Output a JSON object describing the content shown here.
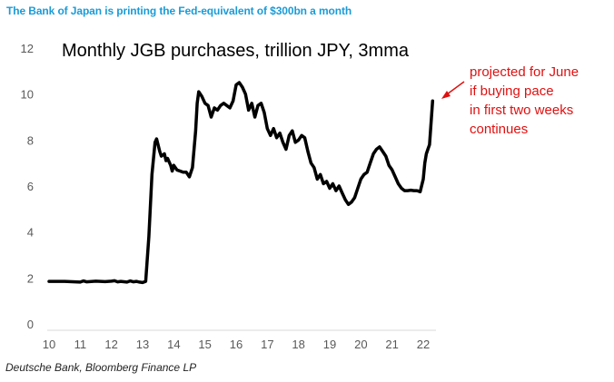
{
  "headline": "The Bank of Japan is printing the Fed-equivalent of $300bn a month",
  "source": "Deutsche Bank, Bloomberg Finance LP",
  "colors": {
    "headline": "#1a9bd7",
    "line": "#000000",
    "annotation": "#e01010"
  },
  "chart_data": {
    "type": "line",
    "title": "Monthly JGB purchases, trillion JPY, 3mma",
    "xlabel": "",
    "ylabel": "",
    "xlim": [
      10,
      22.3
    ],
    "ylim": [
      0,
      12
    ],
    "x_ticks": [
      "10",
      "11",
      "12",
      "13",
      "14",
      "15",
      "16",
      "17",
      "18",
      "19",
      "20",
      "21",
      "22"
    ],
    "y_ticks": [
      "0",
      "2",
      "4",
      "6",
      "8",
      "10",
      "12"
    ],
    "grid": false,
    "annotation": {
      "lines": [
        "projected for June",
        "if buying pace",
        "in first two weeks",
        "continues"
      ],
      "points_to": [
        22.3,
        9.7
      ]
    },
    "series": [
      {
        "name": "Monthly JGB purchases (3mma)",
        "x": [
          10.0,
          10.5,
          11.0,
          11.1,
          11.2,
          11.5,
          11.8,
          12.0,
          12.1,
          12.2,
          12.3,
          12.5,
          12.6,
          12.7,
          12.8,
          12.9,
          13.0,
          13.1,
          13.2,
          13.3,
          13.4,
          13.45,
          13.55,
          13.6,
          13.7,
          13.75,
          13.8,
          13.9,
          13.95,
          14.0,
          14.1,
          14.2,
          14.3,
          14.4,
          14.5,
          14.6,
          14.7,
          14.75,
          14.8,
          14.9,
          15.0,
          15.1,
          15.2,
          15.3,
          15.4,
          15.5,
          15.6,
          15.7,
          15.8,
          15.9,
          16.0,
          16.1,
          16.2,
          16.3,
          16.4,
          16.5,
          16.6,
          16.7,
          16.8,
          16.9,
          17.0,
          17.1,
          17.2,
          17.3,
          17.4,
          17.5,
          17.6,
          17.7,
          17.8,
          17.9,
          18.0,
          18.1,
          18.2,
          18.3,
          18.4,
          18.5,
          18.6,
          18.7,
          18.8,
          18.9,
          19.0,
          19.1,
          19.2,
          19.3,
          19.4,
          19.5,
          19.6,
          19.7,
          19.8,
          19.9,
          20.0,
          20.1,
          20.2,
          20.3,
          20.4,
          20.5,
          20.6,
          20.7,
          20.8,
          20.9,
          21.0,
          21.1,
          21.2,
          21.3,
          21.4,
          21.5,
          21.6,
          21.7,
          21.8,
          21.9,
          22.0,
          22.05,
          22.1,
          22.15,
          22.2,
          22.3
        ],
        "values": [
          1.85,
          1.85,
          1.82,
          1.87,
          1.83,
          1.86,
          1.84,
          1.86,
          1.88,
          1.83,
          1.85,
          1.82,
          1.87,
          1.83,
          1.85,
          1.82,
          1.8,
          1.85,
          3.8,
          6.5,
          7.9,
          8.05,
          7.5,
          7.3,
          7.4,
          7.1,
          7.2,
          6.9,
          6.65,
          6.9,
          6.7,
          6.65,
          6.6,
          6.6,
          6.4,
          6.8,
          8.4,
          9.6,
          10.1,
          9.9,
          9.6,
          9.5,
          9.0,
          9.4,
          9.3,
          9.5,
          9.6,
          9.5,
          9.4,
          9.7,
          10.4,
          10.5,
          10.3,
          10.0,
          9.3,
          9.6,
          9.0,
          9.5,
          9.6,
          9.2,
          8.5,
          8.2,
          8.5,
          8.1,
          8.3,
          7.9,
          7.6,
          8.2,
          8.4,
          7.9,
          8.0,
          8.2,
          8.1,
          7.5,
          7.0,
          6.8,
          6.3,
          6.5,
          6.1,
          6.2,
          5.9,
          6.1,
          5.8,
          6.0,
          5.7,
          5.4,
          5.2,
          5.3,
          5.5,
          5.9,
          6.3,
          6.5,
          6.6,
          7.0,
          7.4,
          7.6,
          7.7,
          7.5,
          7.3,
          6.9,
          6.7,
          6.4,
          6.1,
          5.9,
          5.8,
          5.8,
          5.82,
          5.8,
          5.8,
          5.75,
          6.3,
          7.0,
          7.4,
          7.6,
          7.8,
          9.7
        ]
      }
    ]
  }
}
